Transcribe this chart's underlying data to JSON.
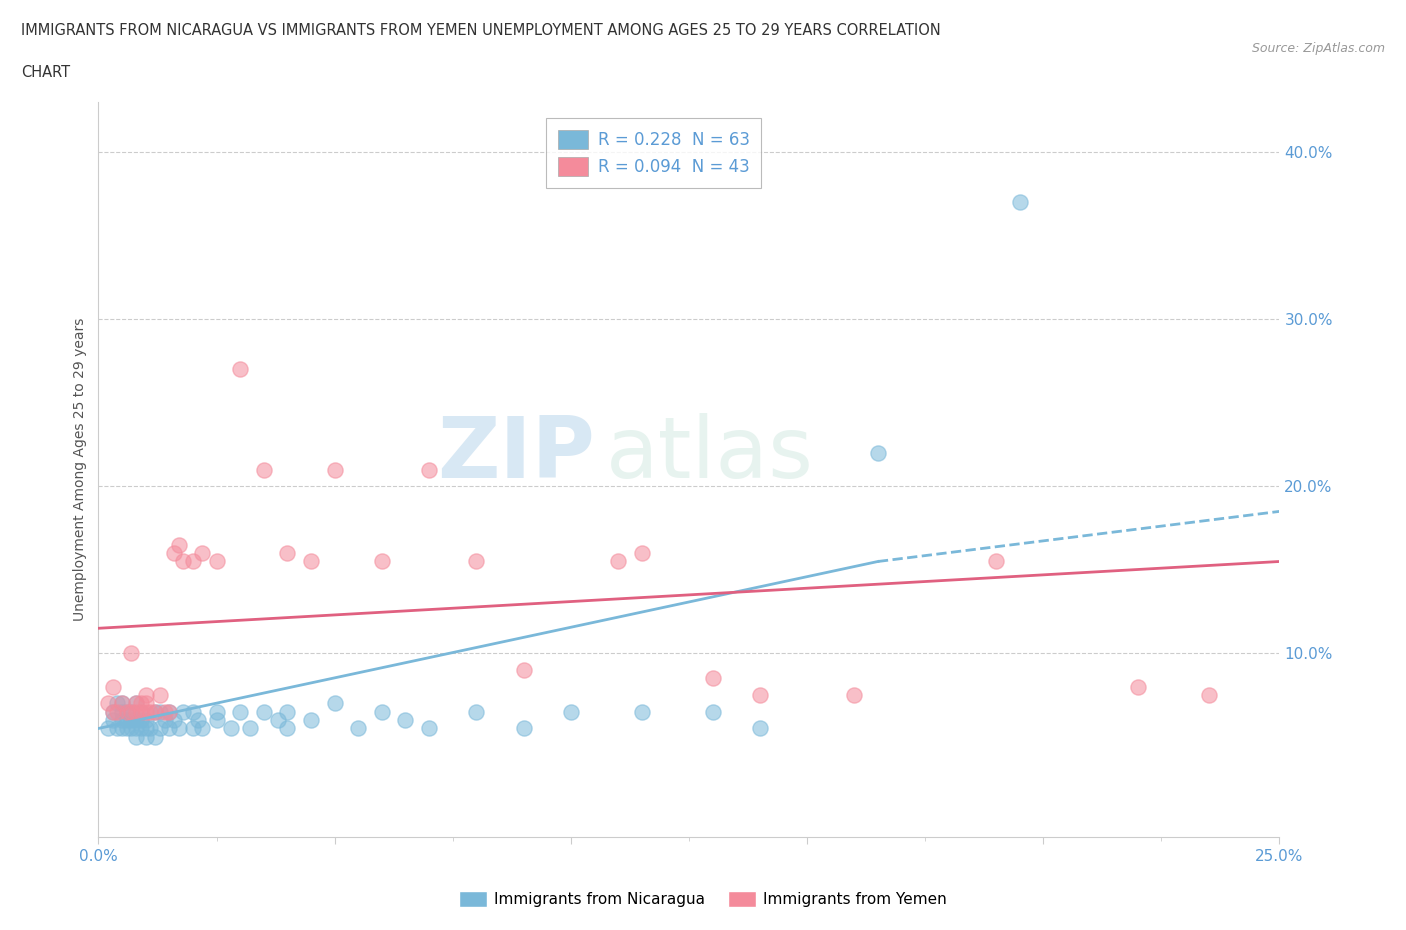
{
  "title_line1": "IMMIGRANTS FROM NICARAGUA VS IMMIGRANTS FROM YEMEN UNEMPLOYMENT AMONG AGES 25 TO 29 YEARS CORRELATION",
  "title_line2": "CHART",
  "source_text": "Source: ZipAtlas.com",
  "ylabel": "Unemployment Among Ages 25 to 29 years",
  "xlim": [
    0.0,
    0.25
  ],
  "ylim": [
    -0.01,
    0.43
  ],
  "xticks": [
    0.0,
    0.05,
    0.1,
    0.15,
    0.2,
    0.25
  ],
  "yticks": [
    0.0,
    0.1,
    0.2,
    0.3,
    0.4
  ],
  "xtick_labels": [
    "0.0%",
    "",
    "",
    "",
    "",
    "25.0%"
  ],
  "ytick_labels": [
    "",
    "10.0%",
    "20.0%",
    "30.0%",
    "40.0%"
  ],
  "nicaragua_color": "#7ab8d9",
  "yemen_color": "#f48b9b",
  "nicaragua_R": 0.228,
  "nicaragua_N": 63,
  "yemen_R": 0.094,
  "yemen_N": 43,
  "watermark_zip": "ZIP",
  "watermark_atlas": "atlas",
  "nicaragua_scatter_x": [
    0.002,
    0.003,
    0.003,
    0.004,
    0.004,
    0.005,
    0.005,
    0.005,
    0.005,
    0.006,
    0.006,
    0.006,
    0.007,
    0.007,
    0.007,
    0.008,
    0.008,
    0.008,
    0.008,
    0.009,
    0.009,
    0.009,
    0.01,
    0.01,
    0.01,
    0.011,
    0.012,
    0.012,
    0.013,
    0.013,
    0.014,
    0.015,
    0.015,
    0.016,
    0.017,
    0.018,
    0.02,
    0.02,
    0.021,
    0.022,
    0.025,
    0.025,
    0.028,
    0.03,
    0.032,
    0.035,
    0.038,
    0.04,
    0.04,
    0.045,
    0.05,
    0.055,
    0.06,
    0.065,
    0.07,
    0.08,
    0.09,
    0.1,
    0.115,
    0.13,
    0.14,
    0.165,
    0.195
  ],
  "nicaragua_scatter_y": [
    0.055,
    0.06,
    0.065,
    0.055,
    0.07,
    0.055,
    0.06,
    0.065,
    0.07,
    0.055,
    0.06,
    0.065,
    0.055,
    0.06,
    0.065,
    0.05,
    0.055,
    0.06,
    0.07,
    0.055,
    0.06,
    0.065,
    0.05,
    0.055,
    0.06,
    0.055,
    0.05,
    0.065,
    0.055,
    0.065,
    0.06,
    0.055,
    0.065,
    0.06,
    0.055,
    0.065,
    0.055,
    0.065,
    0.06,
    0.055,
    0.06,
    0.065,
    0.055,
    0.065,
    0.055,
    0.065,
    0.06,
    0.055,
    0.065,
    0.06,
    0.07,
    0.055,
    0.065,
    0.06,
    0.055,
    0.065,
    0.055,
    0.065,
    0.065,
    0.065,
    0.055,
    0.22,
    0.37
  ],
  "yemen_scatter_x": [
    0.002,
    0.003,
    0.003,
    0.004,
    0.005,
    0.006,
    0.007,
    0.007,
    0.008,
    0.008,
    0.009,
    0.009,
    0.01,
    0.01,
    0.01,
    0.011,
    0.012,
    0.013,
    0.014,
    0.015,
    0.016,
    0.017,
    0.018,
    0.02,
    0.022,
    0.025,
    0.03,
    0.035,
    0.04,
    0.045,
    0.05,
    0.06,
    0.07,
    0.08,
    0.09,
    0.11,
    0.115,
    0.13,
    0.14,
    0.16,
    0.19,
    0.22,
    0.235
  ],
  "yemen_scatter_y": [
    0.07,
    0.065,
    0.08,
    0.065,
    0.07,
    0.065,
    0.1,
    0.065,
    0.065,
    0.07,
    0.065,
    0.07,
    0.065,
    0.07,
    0.075,
    0.065,
    0.065,
    0.075,
    0.065,
    0.065,
    0.16,
    0.165,
    0.155,
    0.155,
    0.16,
    0.155,
    0.27,
    0.21,
    0.16,
    0.155,
    0.21,
    0.155,
    0.21,
    0.155,
    0.09,
    0.155,
    0.16,
    0.085,
    0.075,
    0.075,
    0.155,
    0.08,
    0.075
  ],
  "nicaragua_trend_x0": 0.0,
  "nicaragua_trend_y0": 0.055,
  "nicaragua_trend_x1": 0.165,
  "nicaragua_trend_y1": 0.155,
  "nicaragua_trend_x2": 0.25,
  "nicaragua_trend_y2": 0.185,
  "yemen_trend_x0": 0.0,
  "yemen_trend_y0": 0.115,
  "yemen_trend_x1": 0.25,
  "yemen_trend_y1": 0.155,
  "background_color": "#ffffff",
  "grid_color": "#cccccc",
  "tick_color": "#5b9bd5",
  "axis_color": "#cccccc"
}
